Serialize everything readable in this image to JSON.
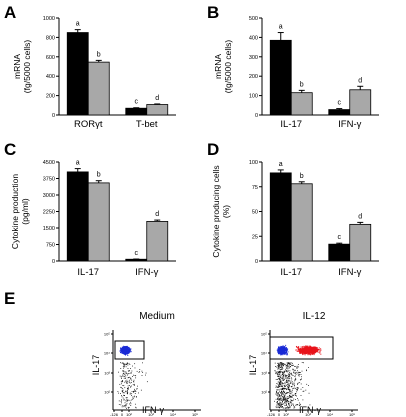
{
  "colors": {
    "bar_black": "#000000",
    "bar_gray": "#a8a8a8",
    "dot_black": "#000000",
    "dot_blue": "#1a2bd6",
    "dot_red": "#e8141b"
  },
  "chart_data": [
    {
      "panel": "A",
      "type": "bar",
      "categories": [
        "RORγt",
        "T-bet"
      ],
      "series": [
        {
          "values": [
            850,
            70
          ],
          "errors": [
            30,
            5
          ],
          "letters": [
            "a",
            "c"
          ]
        },
        {
          "values": [
            545,
            108
          ],
          "errors": [
            18,
            6
          ],
          "letters": [
            "b",
            "d"
          ]
        }
      ],
      "ylabel": "mRNA\n(fg/5000 cells)",
      "ylim": [
        0,
        1000
      ],
      "yticks": [
        0,
        200,
        400,
        600,
        800,
        1000
      ]
    },
    {
      "panel": "B",
      "type": "bar",
      "categories": [
        "IL-17",
        "IFN-γ"
      ],
      "series": [
        {
          "values": [
            385,
            28
          ],
          "errors": [
            40,
            5
          ],
          "letters": [
            "a",
            "c"
          ]
        },
        {
          "values": [
            115,
            130
          ],
          "errors": [
            12,
            18
          ],
          "letters": [
            "b",
            "d"
          ]
        }
      ],
      "ylabel": "mRNA\n(fg/5000 cells)",
      "ylim": [
        0,
        500
      ],
      "yticks": [
        0,
        100,
        200,
        300,
        400,
        500
      ]
    },
    {
      "panel": "C",
      "type": "bar",
      "categories": [
        "IL-17",
        "IFN-γ"
      ],
      "series": [
        {
          "values": [
            4050,
            80
          ],
          "errors": [
            150,
            10
          ],
          "letters": [
            "a",
            "c"
          ]
        },
        {
          "values": [
            3550,
            1800
          ],
          "errors": [
            100,
            60
          ],
          "letters": [
            "b",
            "d"
          ]
        }
      ],
      "ylabel": "Cytokine  production\n(pg/ml)",
      "ylim": [
        0,
        4500
      ],
      "yticks": [
        0,
        750,
        1500,
        2250,
        3000,
        3750,
        4500
      ]
    },
    {
      "panel": "D",
      "type": "bar",
      "categories": [
        "IL-17",
        "IFN-γ"
      ],
      "series": [
        {
          "values": [
            89,
            17
          ],
          "errors": [
            3,
            1
          ],
          "letters": [
            "a",
            "c"
          ]
        },
        {
          "values": [
            78,
            37
          ],
          "errors": [
            2,
            2
          ],
          "letters": [
            "b",
            "d"
          ]
        }
      ],
      "ylabel": "Cytokine producing cells\n(%)",
      "ylim": [
        0,
        100
      ],
      "yticks": [
        0,
        25,
        50,
        75,
        100
      ]
    },
    {
      "panel": "E",
      "type": "scatter",
      "plots": [
        {
          "title": "Medium",
          "xlabel": "IFN-γ",
          "ylabel": "IL-17"
        },
        {
          "title": "IL-12",
          "xlabel": "IFN-γ",
          "ylabel": "IL-17"
        }
      ],
      "x_ticks": [
        "-126",
        "0",
        "10²",
        "10³",
        "10⁴",
        "10⁵"
      ],
      "y_ticks": [
        "10²",
        "10³",
        "10⁴",
        "10⁵"
      ]
    }
  ]
}
